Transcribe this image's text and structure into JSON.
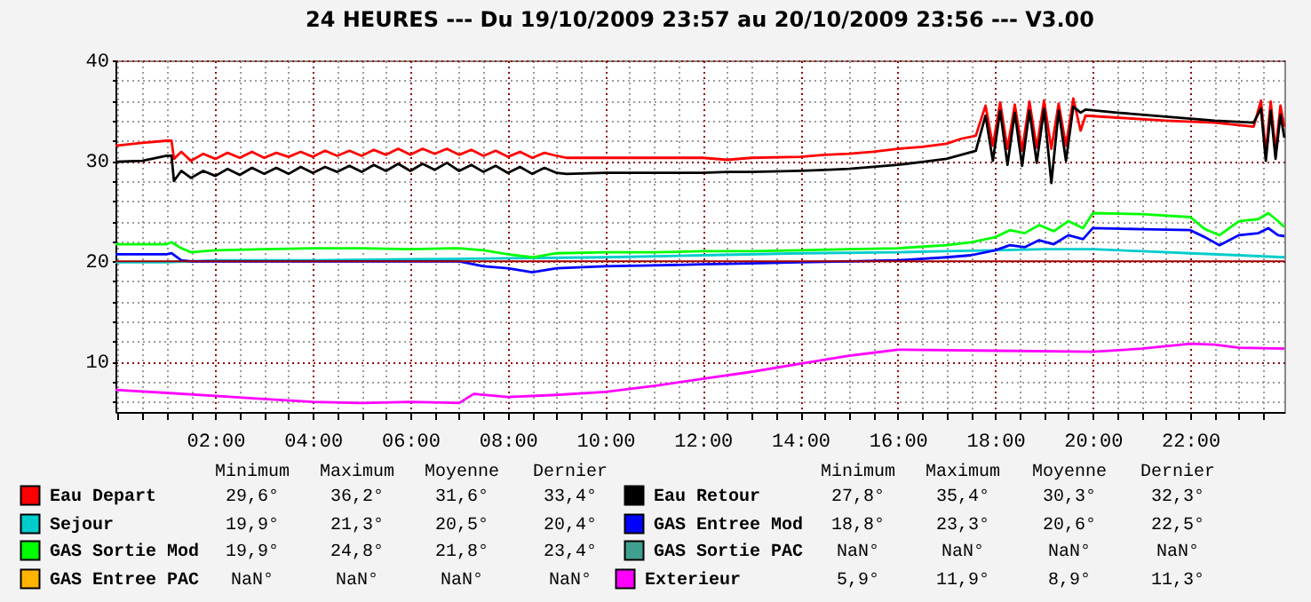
{
  "chart_data": {
    "type": "line",
    "title": "24 HEURES --- Du 19/10/2009 23:57 au 20/10/2009 23:56 --- V3.00",
    "xlim": [
      -0.05,
      23.93
    ],
    "xticks": [
      {
        "value": 0,
        "label": null
      },
      {
        "value": 0.5,
        "label": null
      },
      {
        "value": 1,
        "label": null
      },
      {
        "value": 1.5,
        "label": null
      },
      {
        "value": 2,
        "label": "02:00"
      },
      {
        "value": 2.5,
        "label": null
      },
      {
        "value": 3,
        "label": null
      },
      {
        "value": 3.5,
        "label": null
      },
      {
        "value": 4,
        "label": "04:00"
      },
      {
        "value": 4.5,
        "label": null
      },
      {
        "value": 5,
        "label": null
      },
      {
        "value": 5.5,
        "label": null
      },
      {
        "value": 6,
        "label": "06:00"
      },
      {
        "value": 6.5,
        "label": null
      },
      {
        "value": 7,
        "label": null
      },
      {
        "value": 7.5,
        "label": null
      },
      {
        "value": 8,
        "label": "08:00"
      },
      {
        "value": 8.5,
        "label": null
      },
      {
        "value": 9,
        "label": null
      },
      {
        "value": 9.5,
        "label": null
      },
      {
        "value": 10,
        "label": "10:00"
      },
      {
        "value": 10.5,
        "label": null
      },
      {
        "value": 11,
        "label": null
      },
      {
        "value": 11.5,
        "label": null
      },
      {
        "value": 12,
        "label": "12:00"
      },
      {
        "value": 12.5,
        "label": null
      },
      {
        "value": 13,
        "label": null
      },
      {
        "value": 13.5,
        "label": null
      },
      {
        "value": 14,
        "label": "14:00"
      },
      {
        "value": 14.5,
        "label": null
      },
      {
        "value": 15,
        "label": null
      },
      {
        "value": 15.5,
        "label": null
      },
      {
        "value": 16,
        "label": "16:00"
      },
      {
        "value": 16.5,
        "label": null
      },
      {
        "value": 17,
        "label": null
      },
      {
        "value": 17.5,
        "label": null
      },
      {
        "value": 18,
        "label": "18:00"
      },
      {
        "value": 18.5,
        "label": null
      },
      {
        "value": 19,
        "label": null
      },
      {
        "value": 19.5,
        "label": null
      },
      {
        "value": 20,
        "label": "20:00"
      },
      {
        "value": 20.5,
        "label": null
      },
      {
        "value": 21,
        "label": null
      },
      {
        "value": 21.5,
        "label": null
      },
      {
        "value": 22,
        "label": "22:00"
      },
      {
        "value": 22.5,
        "label": null
      },
      {
        "value": 23,
        "label": null
      },
      {
        "value": 23.5,
        "label": null
      }
    ],
    "ylim": [
      5,
      40
    ],
    "yticks": [
      {
        "value": 6,
        "label": null
      },
      {
        "value": 8,
        "label": null
      },
      10,
      {
        "value": 12,
        "label": null
      },
      {
        "value": 14,
        "label": null
      },
      {
        "value": 16,
        "label": null
      },
      {
        "value": 18,
        "label": null
      },
      20,
      {
        "value": 22,
        "label": null
      },
      {
        "value": 24,
        "label": null
      },
      {
        "value": 26,
        "label": null
      },
      {
        "value": 28,
        "label": null
      },
      30,
      {
        "value": 32,
        "label": null
      },
      {
        "value": 34,
        "label": null
      },
      {
        "value": 36,
        "label": null
      },
      {
        "value": 38,
        "label": null
      },
      40
    ],
    "grid": true,
    "legend": "bottom",
    "ref_lines": [
      {
        "axis": "y",
        "value": 20,
        "color": "#a00000"
      }
    ],
    "series": [
      {
        "name": "Eau Depart",
        "color": "#ff0000",
        "x": [
          -0.05,
          0.5,
          1.0,
          1.1,
          1.15,
          1.3,
          1.5,
          1.75,
          2.0,
          2.25,
          2.5,
          2.75,
          3.0,
          3.25,
          3.5,
          3.75,
          4.0,
          4.25,
          4.5,
          4.75,
          5.0,
          5.25,
          5.5,
          5.75,
          6.0,
          6.25,
          6.5,
          6.75,
          7.0,
          7.25,
          7.5,
          7.75,
          8.0,
          8.25,
          8.5,
          8.75,
          9.0,
          9.2,
          10,
          11,
          12,
          12.5,
          13,
          14,
          14.5,
          15,
          15.5,
          16,
          16.5,
          17,
          17.3,
          17.6,
          17.8,
          17.95,
          18.1,
          18.25,
          18.4,
          18.55,
          18.7,
          18.85,
          19.0,
          19.15,
          19.3,
          19.45,
          19.6,
          19.75,
          19.85,
          20.5,
          21.5,
          22.5,
          23.3,
          23.45,
          23.55,
          23.65,
          23.75,
          23.85,
          23.93
        ],
        "values": [
          31.5,
          31.8,
          32.0,
          32.0,
          30.2,
          30.9,
          30.0,
          30.7,
          30.2,
          30.8,
          30.3,
          30.9,
          30.3,
          30.8,
          30.4,
          30.9,
          30.4,
          31.0,
          30.5,
          31.0,
          30.5,
          31.1,
          30.6,
          31.2,
          30.6,
          31.2,
          30.7,
          31.2,
          30.6,
          31.1,
          30.5,
          31.0,
          30.4,
          30.9,
          30.3,
          30.8,
          30.5,
          30.3,
          30.3,
          30.3,
          30.3,
          30.1,
          30.3,
          30.4,
          30.6,
          30.7,
          30.9,
          31.2,
          31.4,
          31.7,
          32.2,
          32.5,
          35.5,
          31.5,
          35.8,
          31.2,
          35.6,
          31.0,
          35.9,
          31.3,
          36.0,
          31.2,
          35.7,
          31.5,
          36.2,
          33.0,
          34.5,
          34.3,
          34.0,
          33.8,
          33.4,
          36.0,
          30.8,
          35.9,
          31.0,
          35.5,
          33.4
        ]
      },
      {
        "name": "Eau Retour",
        "color": "#000000",
        "x": [
          -0.05,
          0.5,
          1.0,
          1.1,
          1.15,
          1.3,
          1.5,
          1.75,
          2.0,
          2.25,
          2.5,
          2.75,
          3.0,
          3.25,
          3.5,
          3.75,
          4.0,
          4.25,
          4.5,
          4.75,
          5.0,
          5.25,
          5.5,
          5.75,
          6.0,
          6.25,
          6.5,
          6.75,
          7.0,
          7.25,
          7.5,
          7.75,
          8.0,
          8.25,
          8.5,
          8.75,
          9.0,
          9.2,
          10,
          11,
          12,
          12.5,
          13,
          14,
          14.5,
          15,
          15.5,
          16,
          16.5,
          17,
          17.3,
          17.6,
          17.8,
          17.95,
          18.1,
          18.25,
          18.4,
          18.55,
          18.7,
          18.85,
          19.0,
          19.15,
          19.3,
          19.45,
          19.6,
          19.75,
          19.85,
          20.5,
          21.5,
          22.5,
          23.3,
          23.45,
          23.55,
          23.65,
          23.75,
          23.85,
          23.93
        ],
        "values": [
          29.9,
          30.0,
          30.5,
          30.5,
          28.0,
          29.0,
          28.3,
          29.0,
          28.5,
          29.2,
          28.6,
          29.3,
          28.7,
          29.3,
          28.7,
          29.4,
          28.8,
          29.4,
          28.9,
          29.5,
          28.9,
          29.6,
          29.0,
          29.7,
          29.0,
          29.7,
          29.1,
          29.8,
          29.0,
          29.6,
          28.9,
          29.5,
          28.8,
          29.4,
          28.7,
          29.3,
          28.8,
          28.7,
          28.8,
          28.8,
          28.8,
          28.9,
          28.9,
          29.0,
          29.1,
          29.2,
          29.4,
          29.6,
          29.9,
          30.2,
          30.6,
          31.0,
          34.5,
          30.0,
          35.0,
          29.6,
          34.8,
          29.5,
          35.0,
          29.8,
          35.2,
          27.8,
          35.0,
          30.0,
          35.4,
          34.8,
          35.1,
          34.8,
          34.4,
          34.0,
          33.8,
          35.2,
          30.0,
          35.0,
          30.2,
          34.6,
          32.3
        ]
      },
      {
        "name": "Sejour",
        "color": "#00cccc",
        "x": [
          -0.05,
          1,
          2,
          4,
          6,
          8,
          10,
          12,
          14,
          16,
          17,
          18,
          19,
          20,
          21,
          22,
          23,
          23.93
        ],
        "values": [
          19.9,
          19.9,
          20.1,
          20.1,
          20.2,
          20.3,
          20.4,
          20.6,
          20.8,
          20.9,
          21.0,
          21.1,
          21.2,
          21.2,
          21.0,
          20.8,
          20.6,
          20.4
        ]
      },
      {
        "name": "GAS Entree Mod",
        "color": "#0000ff",
        "x": [
          -0.05,
          1.0,
          1.1,
          1.3,
          1.5,
          2,
          3,
          4,
          5,
          6,
          7,
          7.5,
          8,
          8.5,
          9,
          10,
          11,
          12,
          13,
          14,
          15,
          16,
          17,
          17.5,
          18,
          18.3,
          18.6,
          18.9,
          19.2,
          19.5,
          19.8,
          20,
          21,
          22,
          22.3,
          22.6,
          23,
          23.4,
          23.6,
          23.8,
          23.93
        ],
        "values": [
          20.7,
          20.7,
          20.8,
          20.1,
          20.0,
          20.0,
          20.0,
          20.0,
          20.0,
          20.0,
          20.0,
          19.5,
          19.3,
          18.9,
          19.3,
          19.5,
          19.6,
          19.7,
          19.8,
          19.9,
          20.0,
          20.1,
          20.4,
          20.6,
          21.1,
          21.6,
          21.4,
          22.1,
          21.7,
          22.6,
          22.2,
          23.3,
          23.2,
          23.1,
          22.4,
          21.6,
          22.6,
          22.8,
          23.3,
          22.6,
          22.5
        ]
      },
      {
        "name": "GAS Sortie Mod",
        "color": "#00ff00",
        "x": [
          -0.05,
          1.0,
          1.1,
          1.3,
          1.5,
          2,
          3,
          4,
          5,
          6,
          7,
          7.5,
          8,
          8.5,
          9,
          10,
          11,
          12,
          13,
          14,
          15,
          16,
          17,
          17.5,
          18,
          18.3,
          18.6,
          18.9,
          19.2,
          19.5,
          19.8,
          20,
          21,
          22,
          22.3,
          22.6,
          23,
          23.4,
          23.6,
          23.8,
          23.93
        ],
        "values": [
          21.7,
          21.7,
          21.9,
          21.3,
          20.9,
          21.1,
          21.2,
          21.3,
          21.3,
          21.2,
          21.3,
          21.1,
          20.7,
          20.4,
          20.8,
          20.9,
          20.9,
          21.0,
          21.0,
          21.1,
          21.2,
          21.3,
          21.6,
          21.9,
          22.4,
          23.1,
          22.8,
          23.6,
          23.0,
          24.0,
          23.3,
          24.8,
          24.7,
          24.4,
          23.2,
          22.6,
          24.0,
          24.2,
          24.8,
          24.0,
          23.4
        ]
      },
      {
        "name": "GAS Sortie PAC",
        "color": "#40a090"
      },
      {
        "name": "GAS Entree PAC",
        "color": "#ffb400"
      },
      {
        "name": "Exterieur",
        "color": "#ff00ff",
        "x": [
          -0.05,
          1,
          2,
          3,
          4,
          5,
          6,
          7,
          7.3,
          8,
          9,
          10,
          11,
          12,
          13,
          14,
          15,
          15.5,
          16,
          18,
          20,
          21,
          22,
          22.5,
          23,
          23.93
        ],
        "values": [
          7.2,
          6.9,
          6.6,
          6.3,
          6.0,
          5.9,
          6.0,
          5.9,
          6.8,
          6.5,
          6.7,
          7.0,
          7.6,
          8.3,
          9.0,
          9.8,
          10.6,
          10.9,
          11.2,
          11.1,
          11.0,
          11.3,
          11.8,
          11.7,
          11.4,
          11.3
        ]
      }
    ],
    "annotations": [
      "Minimum",
      "Maximum",
      "Moyenne",
      "Dernier",
      "Minimum",
      "Maximum",
      "Moyenne",
      "Dernier",
      "29,6°",
      "36,2°",
      "31,6°",
      "33,4°",
      "27,8°",
      "35,4°",
      "30,3°",
      "32,3°",
      "19,9°",
      "21,3°",
      "20,5°",
      "20,4°",
      "18,8°",
      "23,3°",
      "20,6°",
      "22,5°",
      "19,9°",
      "24,8°",
      "21,8°",
      "23,4°",
      "NaN°",
      "NaN°",
      "NaN°",
      "NaN°",
      "NaN°",
      "NaN°",
      "NaN°",
      "NaN°",
      "5,9°",
      "11,9°",
      "8,9°",
      "11,3°"
    ]
  }
}
